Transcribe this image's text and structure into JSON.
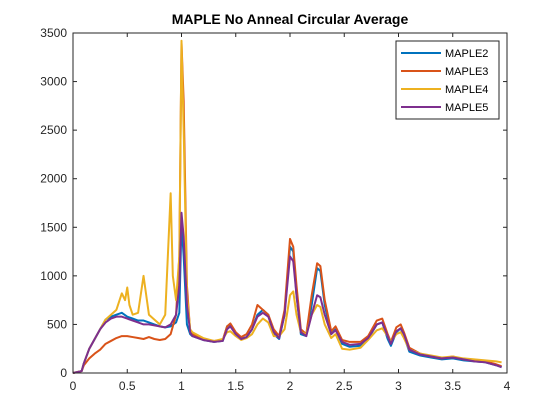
{
  "chart_data": {
    "type": "line",
    "title": "MAPLE No Anneal Circular Average",
    "xlabel": "",
    "ylabel": "",
    "xlim": [
      0,
      4
    ],
    "ylim": [
      0,
      3500
    ],
    "xticks": [
      0,
      0.5,
      1,
      1.5,
      2,
      2.5,
      3,
      3.5,
      4
    ],
    "xtick_labels": [
      "0",
      "0.5",
      "1",
      "1.5",
      "2",
      "2.5",
      "3",
      "3.5",
      "4"
    ],
    "yticks": [
      0,
      500,
      1000,
      1500,
      2000,
      2500,
      3000,
      3500
    ],
    "ytick_labels": [
      "0",
      "500",
      "1000",
      "1500",
      "2000",
      "2500",
      "3000",
      "3500"
    ],
    "grid": false,
    "legend_position": "top-right",
    "series": [
      {
        "name": "MAPLE2",
        "color": "#0072BD",
        "x": [
          0,
          0.08,
          0.1,
          0.15,
          0.2,
          0.25,
          0.3,
          0.35,
          0.4,
          0.45,
          0.5,
          0.55,
          0.6,
          0.65,
          0.7,
          0.75,
          0.8,
          0.85,
          0.9,
          0.95,
          0.98,
          1.0,
          1.02,
          1.05,
          1.08,
          1.1,
          1.2,
          1.3,
          1.38,
          1.42,
          1.45,
          1.5,
          1.55,
          1.6,
          1.65,
          1.7,
          1.75,
          1.8,
          1.85,
          1.9,
          1.95,
          2.0,
          2.03,
          2.06,
          2.1,
          2.15,
          2.2,
          2.25,
          2.28,
          2.32,
          2.38,
          2.42,
          2.48,
          2.55,
          2.65,
          2.72,
          2.8,
          2.85,
          2.9,
          2.93,
          2.98,
          3.02,
          3.05,
          3.1,
          3.2,
          3.3,
          3.4,
          3.5,
          3.6,
          3.7,
          3.8,
          3.9,
          3.95
        ],
        "y": [
          0,
          20,
          100,
          250,
          350,
          450,
          550,
          580,
          600,
          620,
          580,
          560,
          540,
          540,
          520,
          500,
          480,
          470,
          480,
          520,
          620,
          1550,
          1200,
          500,
          400,
          380,
          340,
          320,
          330,
          480,
          500,
          400,
          350,
          370,
          450,
          600,
          650,
          600,
          400,
          350,
          600,
          1300,
          1250,
          800,
          400,
          380,
          700,
          1080,
          1050,
          700,
          400,
          450,
          300,
          270,
          280,
          350,
          500,
          520,
          350,
          280,
          420,
          460,
          380,
          220,
          180,
          160,
          140,
          150,
          130,
          120,
          110,
          80,
          60
        ]
      },
      {
        "name": "MAPLE3",
        "color": "#D95319",
        "x": [
          0,
          0.08,
          0.1,
          0.15,
          0.2,
          0.25,
          0.3,
          0.35,
          0.4,
          0.45,
          0.5,
          0.55,
          0.6,
          0.65,
          0.7,
          0.75,
          0.8,
          0.85,
          0.9,
          0.95,
          0.98,
          1.0,
          1.02,
          1.05,
          1.08,
          1.1,
          1.2,
          1.3,
          1.38,
          1.42,
          1.45,
          1.5,
          1.55,
          1.6,
          1.65,
          1.7,
          1.75,
          1.8,
          1.85,
          1.9,
          1.95,
          2.0,
          2.03,
          2.06,
          2.1,
          2.15,
          2.2,
          2.25,
          2.28,
          2.32,
          2.38,
          2.42,
          2.48,
          2.55,
          2.65,
          2.72,
          2.8,
          2.85,
          2.9,
          2.93,
          2.98,
          3.02,
          3.05,
          3.1,
          3.2,
          3.3,
          3.4,
          3.5,
          3.6,
          3.7,
          3.8,
          3.9,
          3.95
        ],
        "y": [
          0,
          20,
          80,
          150,
          200,
          240,
          300,
          330,
          360,
          380,
          380,
          370,
          360,
          350,
          370,
          350,
          340,
          350,
          400,
          600,
          1200,
          3400,
          2800,
          900,
          420,
          400,
          350,
          330,
          340,
          480,
          510,
          420,
          370,
          400,
          500,
          700,
          650,
          600,
          450,
          380,
          650,
          1380,
          1300,
          900,
          450,
          400,
          800,
          1130,
          1100,
          750,
          430,
          480,
          340,
          320,
          320,
          380,
          540,
          560,
          400,
          320,
          470,
          500,
          420,
          260,
          200,
          170,
          150,
          170,
          140,
          130,
          120,
          90,
          70
        ]
      },
      {
        "name": "MAPLE4",
        "color": "#EDB120",
        "x": [
          0,
          0.08,
          0.1,
          0.15,
          0.2,
          0.25,
          0.3,
          0.35,
          0.4,
          0.45,
          0.48,
          0.5,
          0.52,
          0.55,
          0.6,
          0.65,
          0.7,
          0.75,
          0.8,
          0.85,
          0.9,
          0.92,
          0.95,
          0.98,
          1.0,
          1.02,
          1.05,
          1.08,
          1.1,
          1.2,
          1.3,
          1.38,
          1.42,
          1.45,
          1.5,
          1.55,
          1.6,
          1.65,
          1.7,
          1.75,
          1.8,
          1.85,
          1.9,
          1.95,
          2.0,
          2.03,
          2.06,
          2.1,
          2.15,
          2.2,
          2.25,
          2.28,
          2.32,
          2.38,
          2.42,
          2.48,
          2.55,
          2.65,
          2.72,
          2.8,
          2.85,
          2.9,
          2.93,
          2.98,
          3.02,
          3.05,
          3.1,
          3.2,
          3.3,
          3.4,
          3.5,
          3.6,
          3.7,
          3.8,
          3.9,
          3.95
        ],
        "y": [
          0,
          20,
          100,
          250,
          350,
          450,
          550,
          600,
          650,
          820,
          750,
          880,
          700,
          600,
          620,
          1000,
          600,
          550,
          500,
          600,
          1850,
          1000,
          750,
          1200,
          3420,
          2500,
          800,
          450,
          420,
          360,
          330,
          350,
          420,
          430,
          380,
          340,
          360,
          400,
          500,
          560,
          520,
          380,
          380,
          450,
          800,
          840,
          600,
          420,
          400,
          600,
          700,
          680,
          500,
          360,
          400,
          250,
          240,
          260,
          340,
          440,
          460,
          380,
          320,
          400,
          420,
          360,
          240,
          200,
          180,
          160,
          170,
          150,
          140,
          130,
          120,
          110
        ]
      },
      {
        "name": "MAPLE5",
        "color": "#7E2F8E",
        "x": [
          0,
          0.08,
          0.1,
          0.15,
          0.2,
          0.25,
          0.3,
          0.35,
          0.4,
          0.45,
          0.5,
          0.55,
          0.6,
          0.65,
          0.7,
          0.75,
          0.8,
          0.85,
          0.9,
          0.95,
          0.98,
          1.0,
          1.02,
          1.05,
          1.08,
          1.1,
          1.2,
          1.3,
          1.38,
          1.42,
          1.45,
          1.5,
          1.55,
          1.6,
          1.65,
          1.7,
          1.75,
          1.8,
          1.85,
          1.9,
          1.95,
          2.0,
          2.03,
          2.06,
          2.1,
          2.15,
          2.2,
          2.25,
          2.28,
          2.32,
          2.38,
          2.42,
          2.48,
          2.55,
          2.65,
          2.72,
          2.8,
          2.85,
          2.9,
          2.93,
          2.98,
          3.02,
          3.05,
          3.1,
          3.2,
          3.3,
          3.4,
          3.5,
          3.6,
          3.7,
          3.8,
          3.9,
          3.95
        ],
        "y": [
          0,
          20,
          100,
          250,
          350,
          450,
          520,
          560,
          580,
          580,
          560,
          540,
          520,
          500,
          500,
          490,
          480,
          470,
          500,
          600,
          900,
          1650,
          1400,
          700,
          420,
          380,
          340,
          320,
          330,
          450,
          480,
          400,
          350,
          370,
          450,
          580,
          620,
          580,
          420,
          360,
          600,
          1200,
          1150,
          800,
          420,
          380,
          600,
          800,
          780,
          600,
          400,
          440,
          320,
          290,
          300,
          360,
          500,
          520,
          380,
          300,
          430,
          460,
          400,
          240,
          190,
          170,
          150,
          160,
          140,
          120,
          110,
          80,
          60
        ]
      }
    ]
  }
}
